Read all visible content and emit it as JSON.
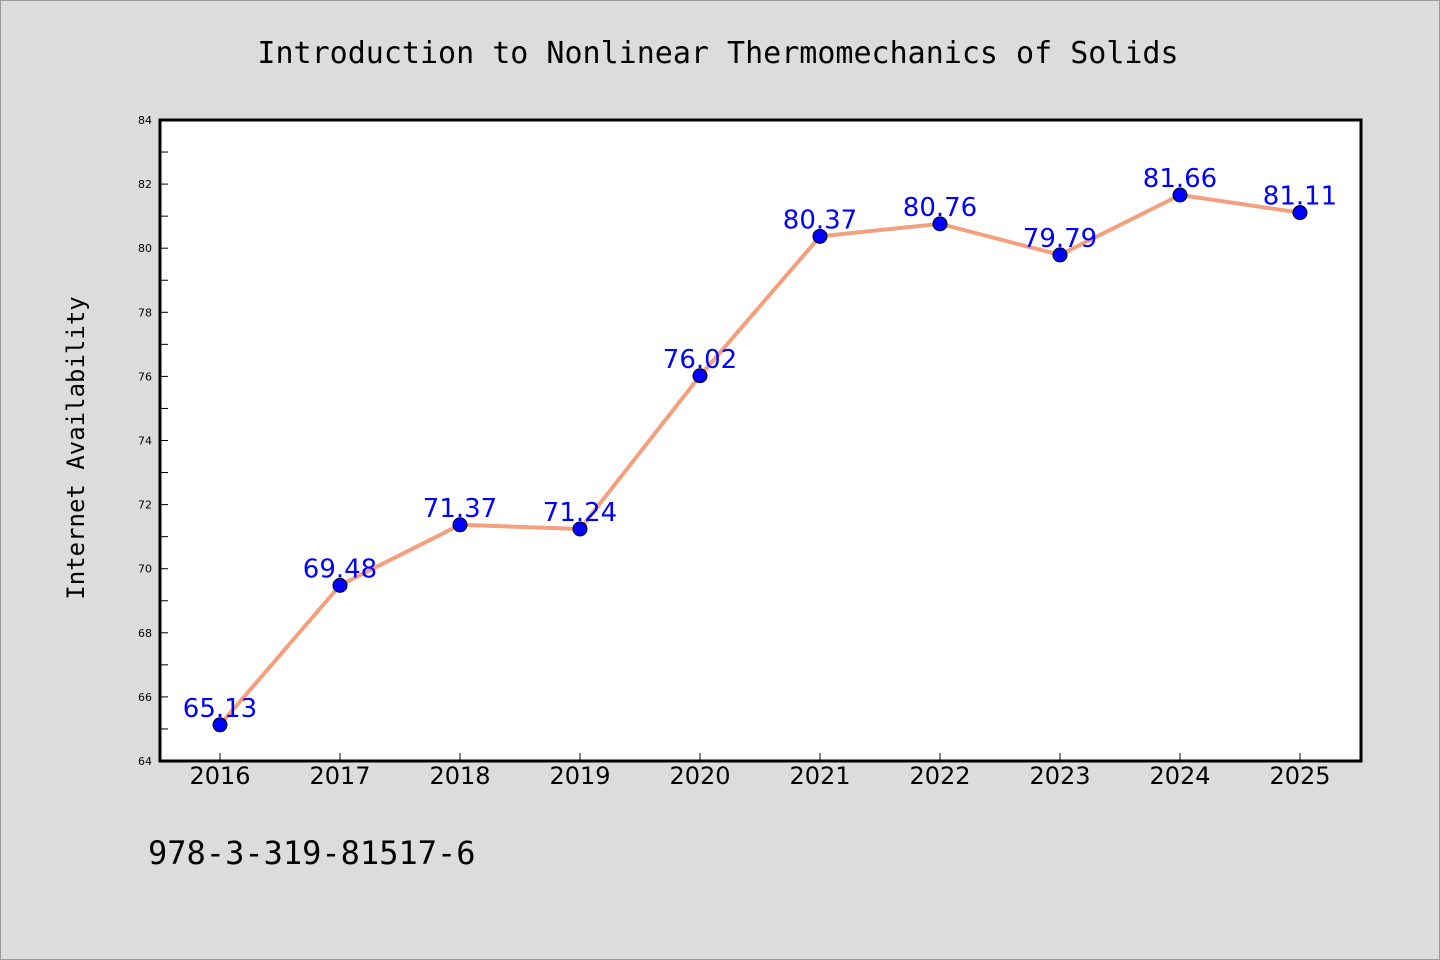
{
  "chart_data": {
    "type": "line",
    "title": "Introduction to Nonlinear Thermomechanics of Solids",
    "xlabel": "",
    "ylabel": "Internet Availability",
    "categories": [
      "2016",
      "2017",
      "2018",
      "2019",
      "2020",
      "2021",
      "2022",
      "2023",
      "2024",
      "2025"
    ],
    "series": [
      {
        "values": [
          65.13,
          69.48,
          71.37,
          71.24,
          76.02,
          80.37,
          80.76,
          79.79,
          81.66,
          81.11
        ],
        "data_labels": [
          "65.13",
          "69.48",
          "71.37",
          "71.24",
          "76.02",
          "80.37",
          "80.76",
          "79.79",
          "81.66",
          "81.11"
        ]
      }
    ],
    "ylim": [
      64,
      84
    ],
    "yticks": [
      "64",
      "66",
      "68",
      "70",
      "72",
      "74",
      "76",
      "78",
      "80",
      "82",
      "84"
    ],
    "grid": false,
    "legend": "none",
    "colors": {
      "line": "#f4a07e",
      "marker": "#0000ff",
      "label": "#0000ff",
      "background": "#dcdcdc",
      "plot_background": "#ffffff"
    }
  },
  "footer": {
    "isbn": "978-3-319-81517-6"
  }
}
